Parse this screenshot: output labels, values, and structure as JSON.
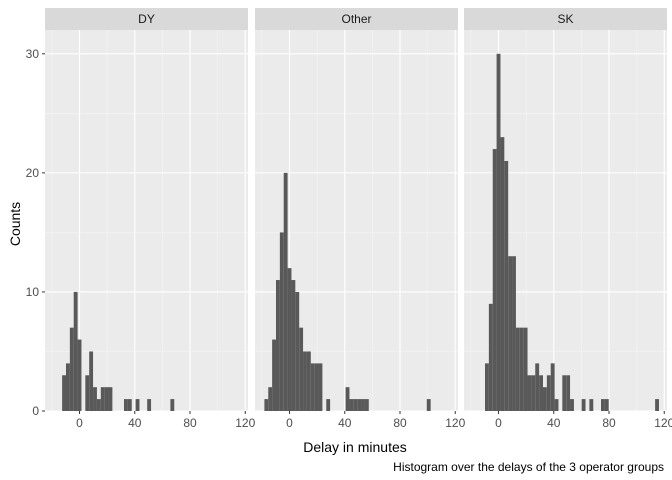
{
  "chart_data": {
    "type": "histogram",
    "facet_by": "operator group",
    "xlabel": "Delay in minutes",
    "ylabel": "Counts",
    "caption": "Histogram over the delays of the 3 operator groups",
    "x_ticks": [
      0,
      40,
      80,
      120
    ],
    "y_ticks": [
      0,
      10,
      20,
      30
    ],
    "xlim": [
      -25,
      122
    ],
    "ylim": [
      0,
      32
    ],
    "bin_width": 2.8,
    "grid": true,
    "colors": {
      "bar": "#595959",
      "panel": "#ebebeb",
      "strip": "#d9d9d9",
      "grid_major": "#ffffff",
      "grid_minor": "#f5f5f5"
    },
    "panels": [
      {
        "label": "DY",
        "bins": [
          {
            "x": -11.2,
            "count": 3
          },
          {
            "x": -8.4,
            "count": 4
          },
          {
            "x": -5.6,
            "count": 7
          },
          {
            "x": -2.8,
            "count": 10
          },
          {
            "x": 0.0,
            "count": 6
          },
          {
            "x": 2.8,
            "count": 0
          },
          {
            "x": 5.6,
            "count": 3
          },
          {
            "x": 8.4,
            "count": 5
          },
          {
            "x": 11.2,
            "count": 2
          },
          {
            "x": 14.0,
            "count": 1
          },
          {
            "x": 16.8,
            "count": 2
          },
          {
            "x": 19.6,
            "count": 2
          },
          {
            "x": 22.4,
            "count": 2
          },
          {
            "x": 33.6,
            "count": 1
          },
          {
            "x": 36.4,
            "count": 1
          },
          {
            "x": 42.0,
            "count": 1
          },
          {
            "x": 50.4,
            "count": 1
          },
          {
            "x": 67.2,
            "count": 1
          }
        ]
      },
      {
        "label": "Other",
        "bins": [
          {
            "x": -16.8,
            "count": 1
          },
          {
            "x": -14.0,
            "count": 2
          },
          {
            "x": -11.2,
            "count": 6
          },
          {
            "x": -8.4,
            "count": 11
          },
          {
            "x": -5.6,
            "count": 15
          },
          {
            "x": -2.8,
            "count": 20
          },
          {
            "x": 0.0,
            "count": 12
          },
          {
            "x": 2.8,
            "count": 11
          },
          {
            "x": 5.6,
            "count": 10
          },
          {
            "x": 8.4,
            "count": 7
          },
          {
            "x": 11.2,
            "count": 5
          },
          {
            "x": 14.0,
            "count": 5
          },
          {
            "x": 16.8,
            "count": 4
          },
          {
            "x": 19.6,
            "count": 4
          },
          {
            "x": 22.4,
            "count": 4
          },
          {
            "x": 28.0,
            "count": 1
          },
          {
            "x": 42.0,
            "count": 2
          },
          {
            "x": 44.8,
            "count": 1
          },
          {
            "x": 47.6,
            "count": 1
          },
          {
            "x": 50.4,
            "count": 1
          },
          {
            "x": 53.2,
            "count": 1
          },
          {
            "x": 56.0,
            "count": 1
          },
          {
            "x": 100.8,
            "count": 1
          }
        ]
      },
      {
        "label": "SK",
        "bins": [
          {
            "x": -8.4,
            "count": 4
          },
          {
            "x": -5.6,
            "count": 9
          },
          {
            "x": -2.8,
            "count": 22
          },
          {
            "x": 0.0,
            "count": 30
          },
          {
            "x": 2.8,
            "count": 23
          },
          {
            "x": 5.6,
            "count": 21
          },
          {
            "x": 8.4,
            "count": 13
          },
          {
            "x": 11.2,
            "count": 13
          },
          {
            "x": 14.0,
            "count": 7
          },
          {
            "x": 16.8,
            "count": 7
          },
          {
            "x": 19.6,
            "count": 7
          },
          {
            "x": 22.4,
            "count": 3
          },
          {
            "x": 25.2,
            "count": 3
          },
          {
            "x": 28.0,
            "count": 4
          },
          {
            "x": 30.8,
            "count": 3
          },
          {
            "x": 33.6,
            "count": 2
          },
          {
            "x": 36.4,
            "count": 3
          },
          {
            "x": 39.2,
            "count": 4
          },
          {
            "x": 42.0,
            "count": 1
          },
          {
            "x": 47.6,
            "count": 3
          },
          {
            "x": 50.4,
            "count": 3
          },
          {
            "x": 53.2,
            "count": 1
          },
          {
            "x": 61.6,
            "count": 1
          },
          {
            "x": 67.2,
            "count": 1
          },
          {
            "x": 75.6,
            "count": 1
          },
          {
            "x": 78.4,
            "count": 1
          },
          {
            "x": 114.8,
            "count": 1
          }
        ]
      }
    ]
  }
}
